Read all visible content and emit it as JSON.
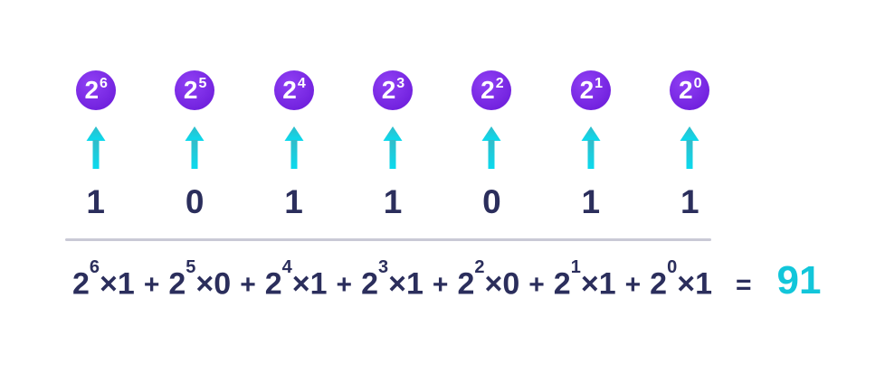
{
  "colors": {
    "background": "#ffffff",
    "circle_gradient_start": "#9040f4",
    "circle_gradient_end": "#6d1ddb",
    "circle_text": "#ffffff",
    "arrow_gradient_start": "#32bcc9",
    "arrow_gradient_end": "#0adaee",
    "navy_text": "#2b2e5c",
    "result_text": "#12c6da",
    "divider": "#c9c9d6"
  },
  "diagram": {
    "columns": [
      {
        "base": "2",
        "exponent": "6",
        "bit": "1"
      },
      {
        "base": "2",
        "exponent": "5",
        "bit": "0"
      },
      {
        "base": "2",
        "exponent": "4",
        "bit": "1"
      },
      {
        "base": "2",
        "exponent": "3",
        "bit": "1"
      },
      {
        "base": "2",
        "exponent": "2",
        "bit": "0"
      },
      {
        "base": "2",
        "exponent": "1",
        "bit": "1"
      },
      {
        "base": "2",
        "exponent": "0",
        "bit": "1"
      }
    ],
    "arrow_icon": "up-arrow"
  },
  "formula": {
    "terms": [
      {
        "base": "2",
        "exponent": "6",
        "operator": "×",
        "bit": "1"
      },
      {
        "base": "2",
        "exponent": "5",
        "operator": "×",
        "bit": "0"
      },
      {
        "base": "2",
        "exponent": "4",
        "operator": "×",
        "bit": "1"
      },
      {
        "base": "2",
        "exponent": "3",
        "operator": "×",
        "bit": "1"
      },
      {
        "base": "2",
        "exponent": "2",
        "operator": "×",
        "bit": "0"
      },
      {
        "base": "2",
        "exponent": "1",
        "operator": "×",
        "bit": "1"
      },
      {
        "base": "2",
        "exponent": "0",
        "operator": "×",
        "bit": "1"
      }
    ],
    "plus_sign": "+",
    "equals_sign": "=",
    "result": "91"
  }
}
